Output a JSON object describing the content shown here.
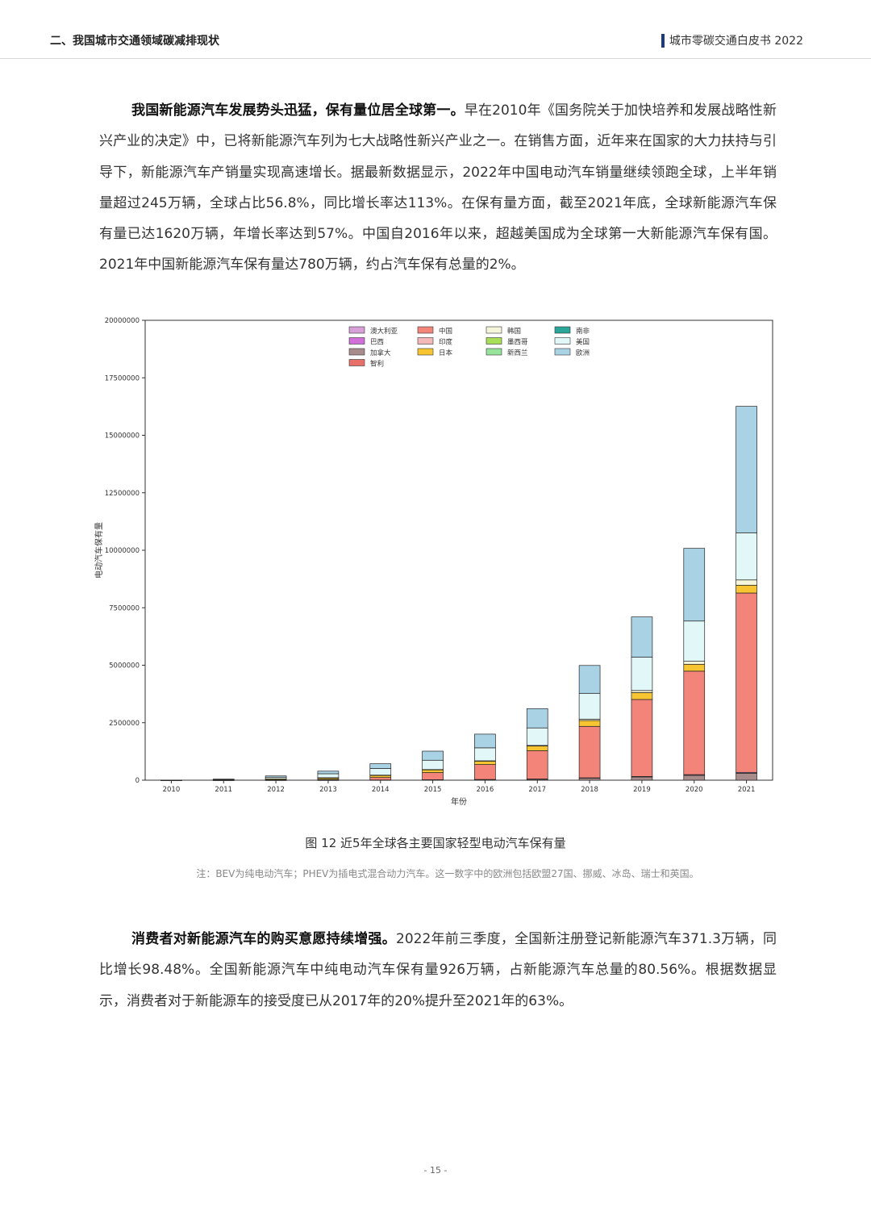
{
  "header": {
    "section_title": "二、我国城市交通领域碳减排现状",
    "doc_title": "城市零碳交通白皮书 2022"
  },
  "para1": {
    "lead": "我国新能源汽车发展势头迅猛，保有量位居全球第一。",
    "body": "早在2010年《国务院关于加快培养和发展战略性新兴产业的决定》中，已将新能源汽车列为七大战略性新兴产业之一。在销售方面，近年来在国家的大力扶持与引导下，新能源汽车产销量实现高速增长。据最新数据显示，2022年中国电动汽车销量继续领跑全球，上半年销量超过245万辆，全球占比56.8%，同比增长率达113%。在保有量方面，截至2021年底，全球新能源汽车保有量已达1620万辆，年增长率达到57%。中国自2016年以来，超越美国成为全球第一大新能源汽车保有国。2021年中国新能源汽车保有量达780万辆，约占汽车保有总量的2%。"
  },
  "figure": {
    "caption": "图 12  近5年全球各主要国家轻型电动汽车保有量",
    "note": "注：BEV为纯电动汽车；PHEV为插电式混合动力汽车。这一数字中的欧洲包括欧盟27国、挪威、冰岛、瑞士和英国。"
  },
  "chart_data": {
    "type": "bar",
    "stacked": true,
    "title": "",
    "xlabel": "年份",
    "ylabel": "电动汽车保有量",
    "ylim": [
      0,
      20000000
    ],
    "yticks": [
      0,
      2500000,
      5000000,
      7500000,
      10000000,
      12500000,
      15000000,
      17500000,
      20000000
    ],
    "ytick_labels": [
      "0",
      "2500000",
      "5000000",
      "7500000",
      "10000000",
      "12500000",
      "15000000",
      "17500000",
      "20000000"
    ],
    "categories": [
      "2010",
      "2011",
      "2012",
      "2013",
      "2014",
      "2015",
      "2016",
      "2017",
      "2018",
      "2019",
      "2020",
      "2021"
    ],
    "legend_position": "top-center",
    "legend_order": [
      "澳大利亚",
      "中国",
      "韩国",
      "南非",
      "巴西",
      "印度",
      "墨西哥",
      "美国",
      "加拿大",
      "日本",
      "新西兰",
      "欧洲",
      "智利"
    ],
    "series": [
      {
        "name": "加拿大",
        "color": "#a88c8c",
        "values": [
          0,
          500,
          2000,
          5000,
          10000,
          18000,
          29000,
          46000,
          93000,
          141000,
          212000,
          300000
        ]
      },
      {
        "name": "巴西",
        "color": "#d070d8",
        "values": [
          0,
          0,
          0,
          0,
          0,
          0,
          0,
          0,
          0,
          0,
          0,
          0
        ]
      },
      {
        "name": "澳大利亚",
        "color": "#d8a0d8",
        "values": [
          0,
          0,
          0,
          0,
          0,
          2000,
          3000,
          7000,
          10000,
          20000,
          30000,
          40000
        ]
      },
      {
        "name": "智利",
        "color": "#e8706a",
        "values": [
          0,
          0,
          0,
          0,
          0,
          0,
          0,
          0,
          0,
          0,
          0,
          0
        ]
      },
      {
        "name": "中国",
        "color": "#f2847a",
        "values": [
          2000,
          7000,
          17000,
          32000,
          107000,
          312000,
          649000,
          1228000,
          2238000,
          3349000,
          4500000,
          7800000
        ]
      },
      {
        "name": "印度",
        "color": "#f4b8b8",
        "values": [
          0,
          0,
          0,
          0,
          0,
          0,
          0,
          0,
          0,
          0,
          0,
          0
        ]
      },
      {
        "name": "日本",
        "color": "#f7c531",
        "values": [
          1000,
          10000,
          40000,
          70000,
          100000,
          126000,
          151000,
          205000,
          255000,
          300000,
          300000,
          340000
        ]
      },
      {
        "name": "墨西哥",
        "color": "#a9df58",
        "values": [
          0,
          0,
          0,
          0,
          0,
          0,
          0,
          0,
          0,
          0,
          0,
          0
        ]
      },
      {
        "name": "新西兰",
        "color": "#98e39c",
        "values": [
          0,
          0,
          0,
          0,
          0,
          0,
          0,
          0,
          0,
          0,
          0,
          0
        ]
      },
      {
        "name": "韩国",
        "color": "#f5f5da",
        "values": [
          0,
          0,
          0,
          1000,
          3000,
          6000,
          11000,
          25000,
          60000,
          90000,
          130000,
          230000
        ]
      },
      {
        "name": "南非",
        "color": "#2aa59a",
        "values": [
          0,
          0,
          0,
          0,
          0,
          0,
          0,
          0,
          0,
          0,
          0,
          0
        ]
      },
      {
        "name": "美国",
        "color": "#e2f7f7",
        "values": [
          1000,
          16000,
          71000,
          172000,
          292000,
          404000,
          564000,
          762000,
          1123000,
          1450000,
          1750000,
          2050000
        ]
      },
      {
        "name": "欧洲",
        "color": "#a9d2e4",
        "values": [
          2000,
          14000,
          55000,
          113000,
          203000,
          395000,
          596000,
          840000,
          1211000,
          1750000,
          3160000,
          5500000
        ]
      }
    ]
  }
}
